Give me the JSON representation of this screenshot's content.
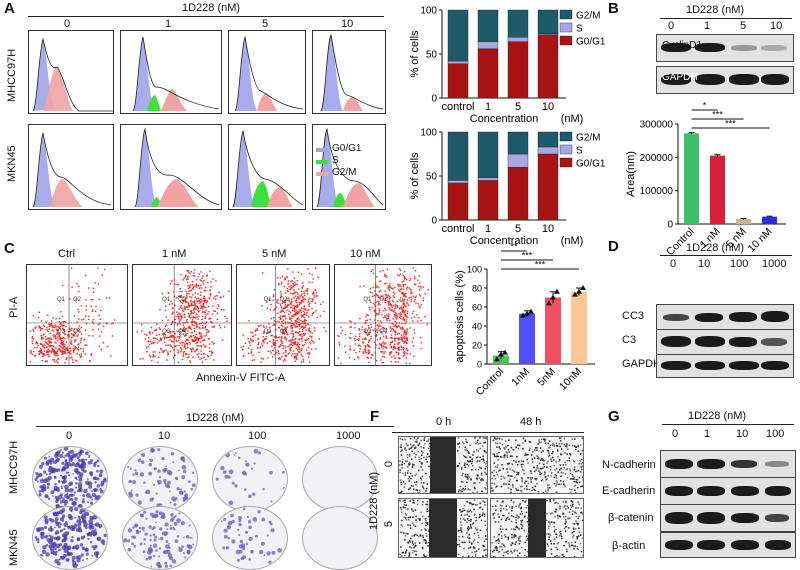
{
  "panels": {
    "A": "A",
    "B": "B",
    "C": "C",
    "D": "D",
    "E": "E",
    "F": "F",
    "G": "G"
  },
  "panelA": {
    "treatment_label": "1D228 (nM)",
    "concentrations": [
      "0",
      "1",
      "5",
      "10"
    ],
    "rows": [
      "MHCC97H",
      "MKN45"
    ],
    "legend": [
      {
        "label": "G0/G1",
        "color": "#9ea2ea"
      },
      {
        "label": "S",
        "color": "#3de03d"
      },
      {
        "label": "G2/M",
        "color": "#f0a4a4"
      }
    ]
  },
  "panelA_bars": {
    "ylabel": "% of cells",
    "xlabel": "Concentration",
    "unit": "(nM)",
    "categories": [
      "control",
      "1",
      "5",
      "10"
    ],
    "yticks": [
      "0",
      "50",
      "100"
    ],
    "legend": [
      {
        "label": "G2/M",
        "color": "#1e5a6a"
      },
      {
        "label": "S",
        "color": "#a8a8e0"
      },
      {
        "label": "G0/G1",
        "color": "#a81414"
      }
    ]
  },
  "chart_data": [
    {
      "type": "bar",
      "stacked": true,
      "title": "",
      "xlabel": "Concentration (nM)",
      "ylabel": "% of cells",
      "categories": [
        "control",
        "1",
        "5",
        "10"
      ],
      "ylim": [
        0,
        100
      ],
      "series": [
        {
          "name": "G0/G1",
          "values": [
            39,
            56,
            64,
            72
          ]
        },
        {
          "name": "S",
          "values": [
            3,
            8,
            5,
            1
          ]
        },
        {
          "name": "G2/M",
          "values": [
            58,
            36,
            31,
            27
          ]
        }
      ]
    },
    {
      "type": "bar",
      "stacked": true,
      "title": "",
      "xlabel": "Concentration (nM)",
      "ylabel": "% of cells",
      "categories": [
        "control",
        "1",
        "5",
        "10"
      ],
      "ylim": [
        0,
        100
      ],
      "series": [
        {
          "name": "G0/G1",
          "values": [
            42,
            45,
            60,
            75
          ]
        },
        {
          "name": "S",
          "values": [
            3,
            3,
            15,
            8
          ]
        },
        {
          "name": "G2/M",
          "values": [
            55,
            52,
            25,
            17
          ]
        }
      ]
    },
    {
      "type": "bar",
      "title": "",
      "xlabel": "",
      "ylabel": "Area(nm)",
      "categories": [
        "Control",
        "1 nM",
        "5 nM",
        "10 nM"
      ],
      "values": [
        272000,
        205000,
        15000,
        22000
      ],
      "errors": [
        2000,
        3000,
        1500,
        1500
      ],
      "colors": [
        "#3fbf6e",
        "#d81f3a",
        "#c8b889",
        "#2a2ad8"
      ],
      "ylim": [
        0,
        300000
      ],
      "yticks": [
        "0",
        "100000",
        "200000",
        "300000"
      ],
      "significance": [
        "*",
        "***",
        "***"
      ]
    },
    {
      "type": "bar",
      "title": "",
      "xlabel": "",
      "ylabel": "apoptosis cells (%)",
      "categories": [
        "Control",
        "1nM",
        "5nM",
        "10nM"
      ],
      "values": [
        9,
        53,
        70,
        76
      ],
      "errors": [
        4,
        3,
        6,
        4
      ],
      "points": [
        [
          5,
          10,
          12
        ],
        [
          51,
          53,
          55
        ],
        [
          64,
          70,
          76
        ],
        [
          73,
          76,
          80
        ]
      ],
      "colors": [
        "#48c858",
        "#5050ff",
        "#f25060",
        "#f7c894"
      ],
      "ylim": [
        0,
        100
      ],
      "yticks": [
        "0",
        "20",
        "40",
        "60",
        "80",
        "100"
      ],
      "significance": [
        "**",
        "***",
        "***"
      ]
    }
  ],
  "panelB": {
    "treatment_label": "1D228 (nM)",
    "lanes": [
      "0",
      "1",
      "5",
      "10"
    ],
    "proteins": [
      "CyclinD1",
      "GAPDH"
    ]
  },
  "panelC": {
    "conditions": [
      "Ctrl",
      "1 nM",
      "5 nM",
      "10 nM"
    ],
    "xlabel": "Annexin-V FITC-A",
    "ylabel": "PI-A",
    "quadrants": [
      "Q1",
      "Q2",
      "Q3",
      "Q4"
    ]
  },
  "panelD": {
    "treatment_label": "1D228 (nM)",
    "lanes": [
      "0",
      "10",
      "100",
      "1000"
    ],
    "proteins": [
      "CC3",
      "C3",
      "GAPDH"
    ]
  },
  "panelE": {
    "treatment_label": "1D228 (nM)",
    "concentrations": [
      "0",
      "10",
      "100",
      "1000"
    ],
    "rows": [
      "MHCC97H",
      "MKN45"
    ]
  },
  "panelF": {
    "times": [
      "0 h",
      "48 h"
    ],
    "side_label": "1D228 (nM)",
    "rows": [
      "0",
      "5"
    ]
  },
  "panelG": {
    "treatment_label": "1D228 (nM)",
    "lanes": [
      "0",
      "1",
      "10",
      "100"
    ],
    "proteins": [
      "N-cadherin",
      "E-cadherin",
      "β-catenin",
      "β-actin"
    ]
  }
}
